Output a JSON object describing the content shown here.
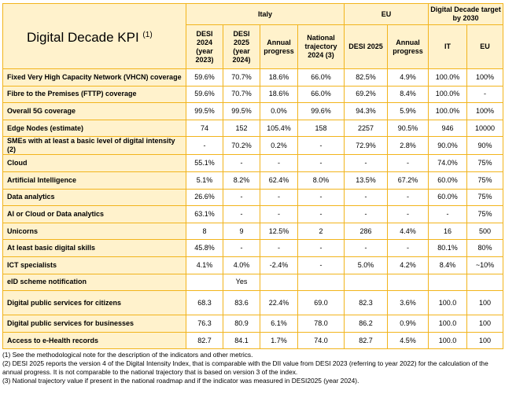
{
  "table": {
    "title": "Digital Decade KPI",
    "title_note": "(1)",
    "groups": [
      "Italy",
      "EU",
      "Digital Decade target by 2030"
    ],
    "columns": [
      "DESI 2024 (year 2023)",
      "DESI 2025 (year 2024)",
      "Annual progress",
      "National trajectory 2024 (3)",
      "DESI 2025",
      "Annual progress",
      "IT",
      "EU"
    ],
    "rows": [
      {
        "label": "Fixed Very High Capacity Network (VHCN) coverage",
        "cells": [
          "59.6%",
          "70.7%",
          "18.6%",
          "66.0%",
          "82.5%",
          "4.9%",
          "100.0%",
          "100%"
        ]
      },
      {
        "label": "Fibre to the Premises (FTTP) coverage",
        "cells": [
          "59.6%",
          "70.7%",
          "18.6%",
          "66.0%",
          "69.2%",
          "8.4%",
          "100.0%",
          "-"
        ]
      },
      {
        "label": "Overall 5G coverage",
        "cells": [
          "99.5%",
          "99.5%",
          "0.0%",
          "99.6%",
          "94.3%",
          "5.9%",
          "100.0%",
          "100%"
        ]
      },
      {
        "label": "Edge Nodes (estimate)",
        "cells": [
          "74",
          "152",
          "105.4%",
          "158",
          "2257",
          "90.5%",
          "946",
          "10000"
        ]
      },
      {
        "label": "SMEs with at least a basic level of digital intensity (2)",
        "cells": [
          "-",
          "70.2%",
          "0.2%",
          "-",
          "72.9%",
          "2.8%",
          "90.0%",
          "90%"
        ]
      },
      {
        "label": "Cloud",
        "cells": [
          "55.1%",
          "-",
          "-",
          "-",
          "-",
          "-",
          "74.0%",
          "75%"
        ]
      },
      {
        "label": "Artificial Intelligence",
        "cells": [
          "5.1%",
          "8.2%",
          "62.4%",
          "8.0%",
          "13.5%",
          "67.2%",
          "60.0%",
          "75%"
        ]
      },
      {
        "label": "Data analytics",
        "cells": [
          "26.6%",
          "-",
          "-",
          "-",
          "-",
          "-",
          "60.0%",
          "75%"
        ]
      },
      {
        "label": "AI or Cloud or Data analytics",
        "cells": [
          "63.1%",
          "-",
          "-",
          "-",
          "-",
          "-",
          "-",
          "75%"
        ]
      },
      {
        "label": "Unicorns",
        "cells": [
          "8",
          "9",
          "12.5%",
          "2",
          "286",
          "4.4%",
          "16",
          "500"
        ]
      },
      {
        "label": "At least basic digital skills",
        "cells": [
          "45.8%",
          "-",
          "-",
          "-",
          "-",
          "-",
          "80.1%",
          "80%"
        ]
      },
      {
        "label": "ICT specialists",
        "cells": [
          "4.1%",
          "4.0%",
          "-2.4%",
          "-",
          "5.0%",
          "4.2%",
          "8.4%",
          "~10%"
        ]
      },
      {
        "label": "eID scheme notification",
        "cells": [
          null,
          "Yes",
          null,
          null,
          null,
          null,
          null,
          null
        ]
      },
      {
        "label": "Digital public services for citizens",
        "cells": [
          "68.3",
          "83.6",
          "22.4%",
          "69.0",
          "82.3",
          "3.6%",
          "100.0",
          "100"
        ]
      },
      {
        "label": "Digital public services for businesses",
        "cells": [
          "76.3",
          "80.9",
          "6.1%",
          "78.0",
          "86.2",
          "0.9%",
          "100.0",
          "100"
        ]
      },
      {
        "label": "Access to e-Health records",
        "cells": [
          "82.7",
          "84.1",
          "1.7%",
          "74.0",
          "82.7",
          "4.5%",
          "100.0",
          "100"
        ]
      }
    ]
  },
  "footnotes": [
    "(1) See the methodological note for the description of the indicators and other metrics.",
    "(2) DESI 2025 reports the version 4 of the Digital Intensity Index, that is comparable with the DII value from DESI 2023 (referring to year 2022) for the calculation of the annual progress. It is not comparable to the national trajectory that is based on version 3 of the index.",
    "(3) National trajectory value if present in the national roadmap and if the indicator was measured in DESI2025 (year 2024)."
  ]
}
